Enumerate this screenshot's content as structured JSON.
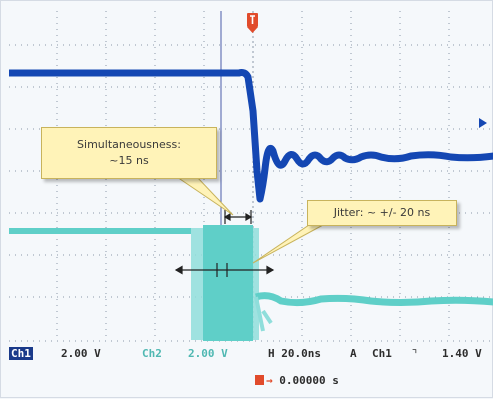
{
  "callouts": {
    "simultaneousness_title": "Simultaneousness:",
    "simultaneousness_value": "~15 ns",
    "jitter": "Jitter: ~ +/- 20 ns"
  },
  "status": {
    "ch1_label": "Ch1",
    "ch1_scale": "2.00 V",
    "ch2_label": "Ch2",
    "ch2_scale": "2.00 V",
    "horizontal": "H 20.0ns",
    "trigger_mode": "A",
    "trigger_source": "Ch1",
    "trigger_slope": "⌝",
    "trigger_level": "1.40 V",
    "trigger_position_arrow": "→",
    "trigger_position": "0.00000 s"
  },
  "colors": {
    "ch1": "#1447b3",
    "ch2": "#5fcfc8",
    "trigger_marker": "#e14b2b",
    "callout_fill": "#fff3b8"
  },
  "icons": [
    "trigger-marker-icon",
    "trigger-position-icon",
    "falling-edge-icon"
  ]
}
